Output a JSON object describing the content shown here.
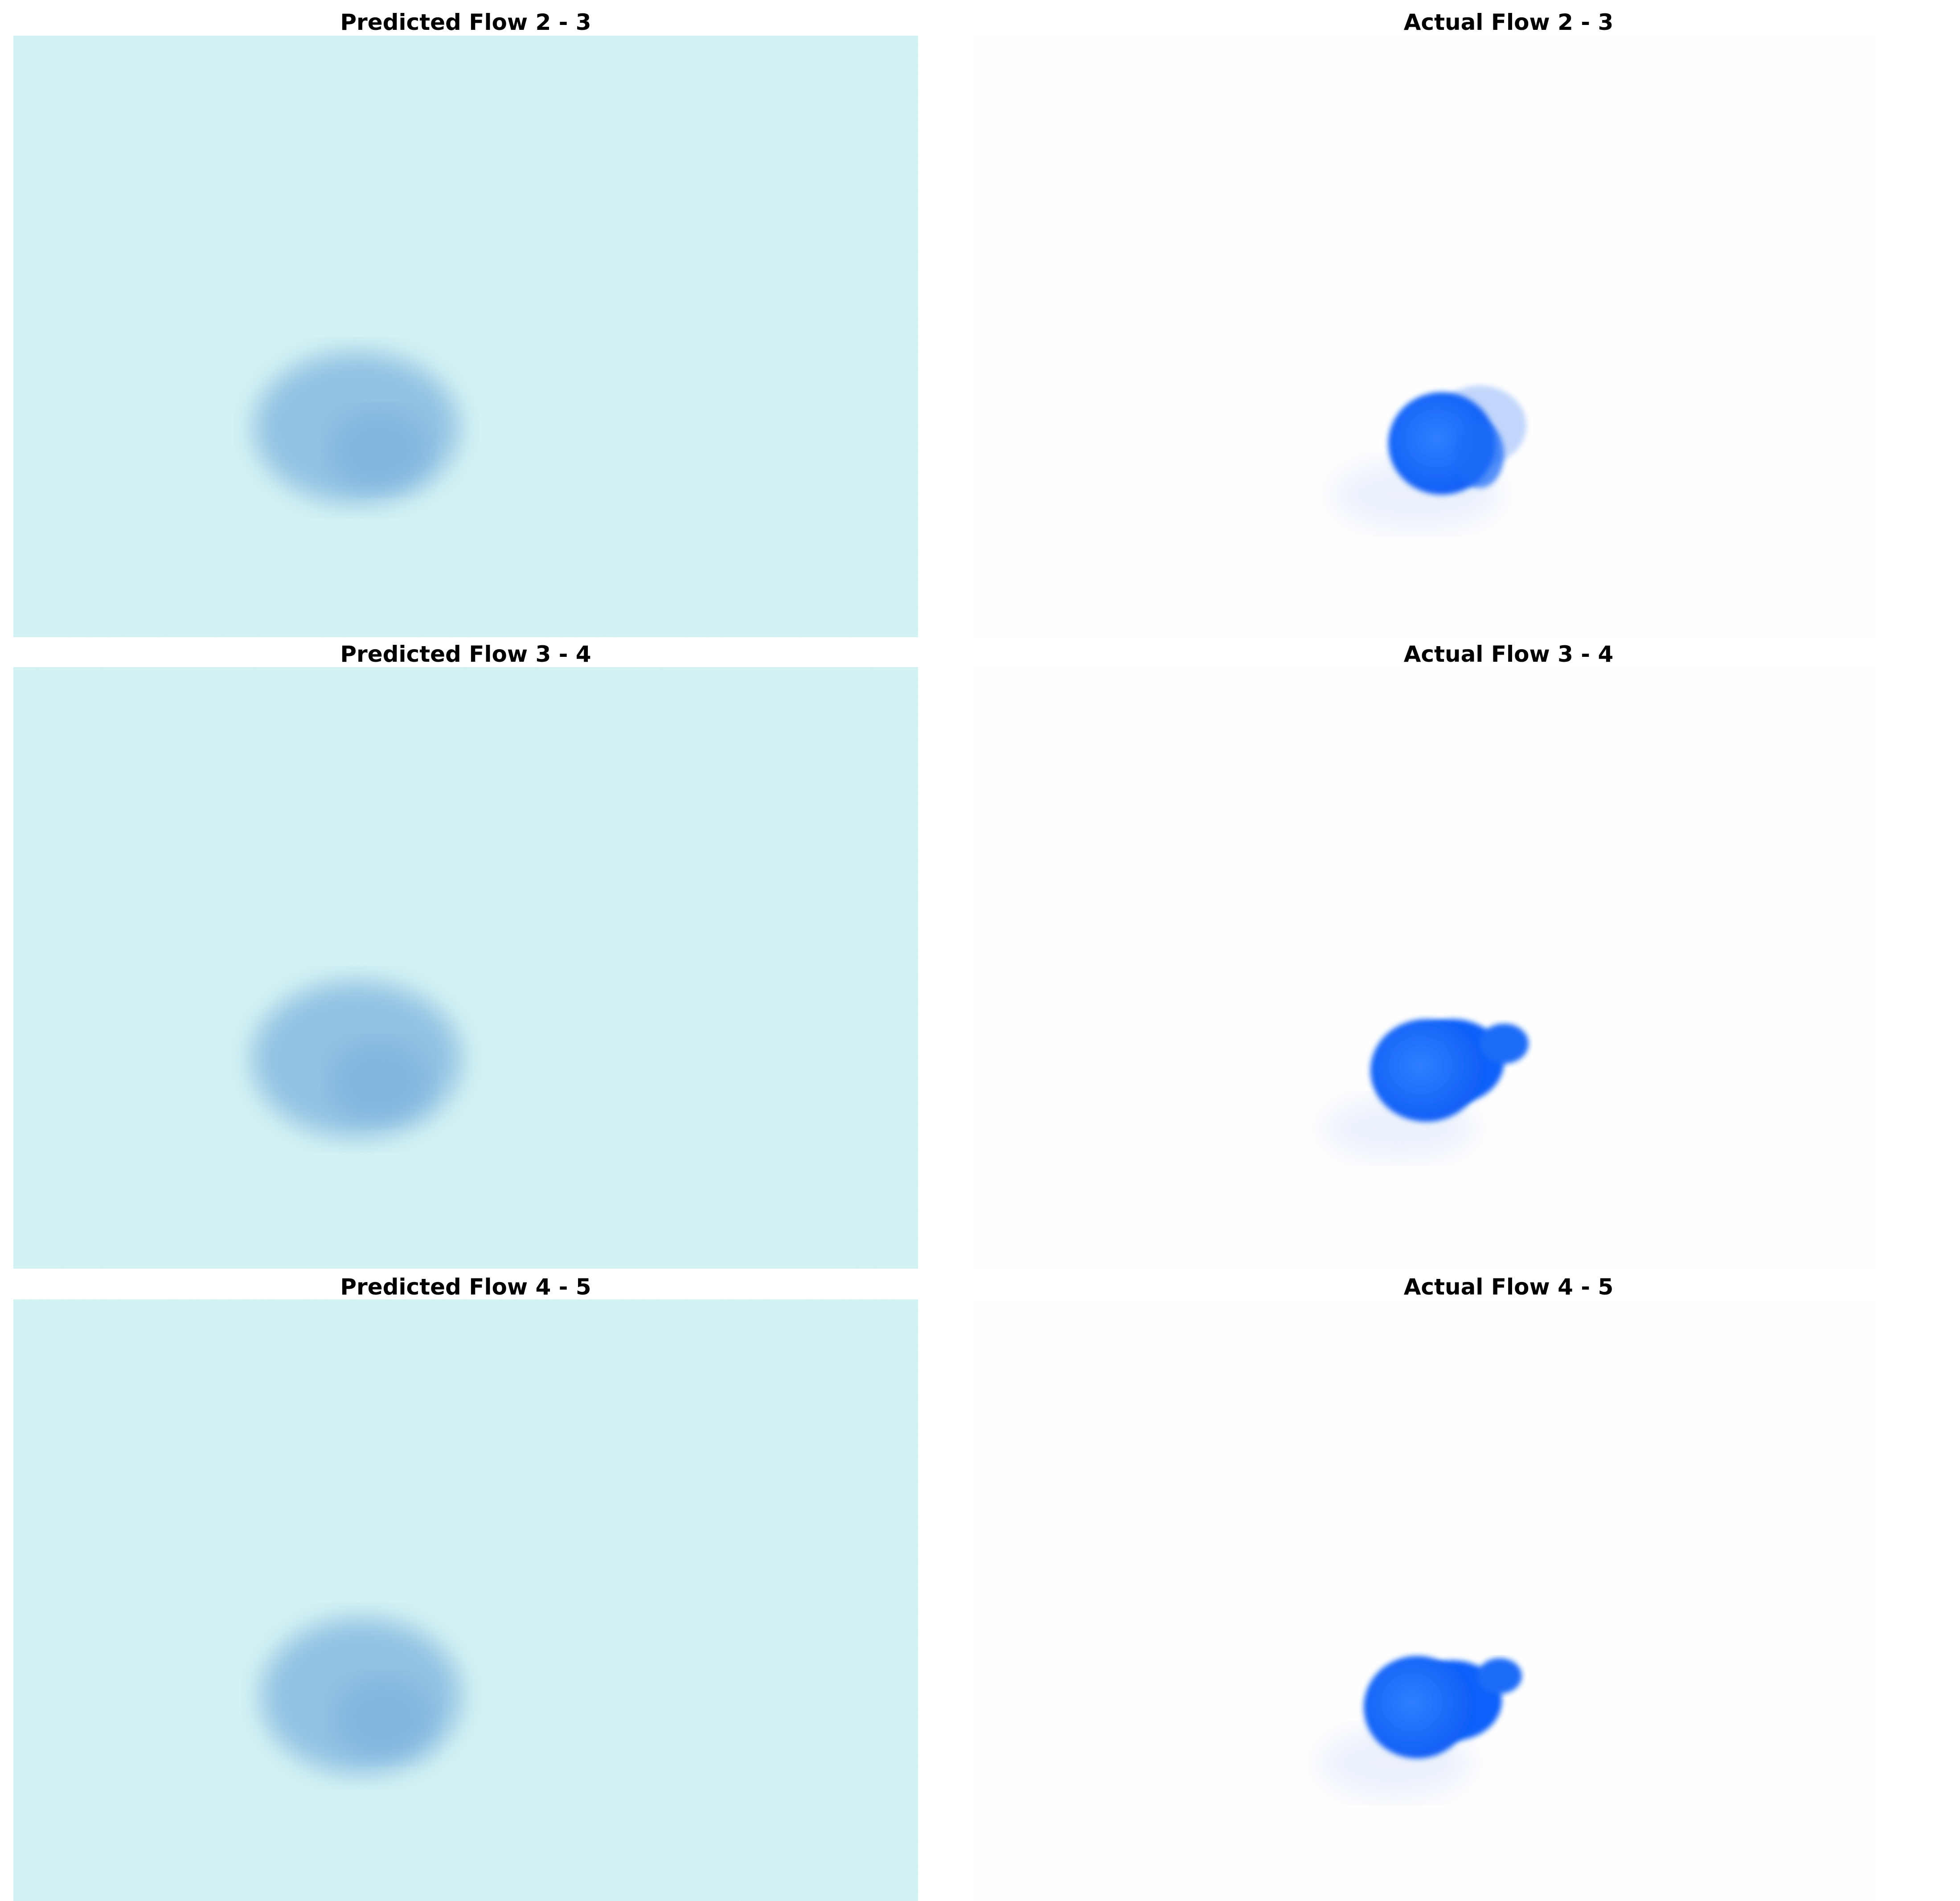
{
  "figure": {
    "rows": [
      {
        "predicted": {
          "title": "Predicted Flow 2 - 3"
        },
        "actual": {
          "title": "Actual Flow 2 - 3"
        }
      },
      {
        "predicted": {
          "title": "Predicted Flow 3 - 4"
        },
        "actual": {
          "title": "Actual Flow 3 - 4"
        }
      },
      {
        "predicted": {
          "title": "Predicted Flow 4 - 5"
        },
        "actual": {
          "title": "Actual Flow 4 - 5"
        }
      }
    ]
  },
  "colors": {
    "predicted_background": "#d6f3f2",
    "predicted_blob": "#7ab3df",
    "actual_background": "#ffffff",
    "actual_blob": "#1f6cfb"
  }
}
